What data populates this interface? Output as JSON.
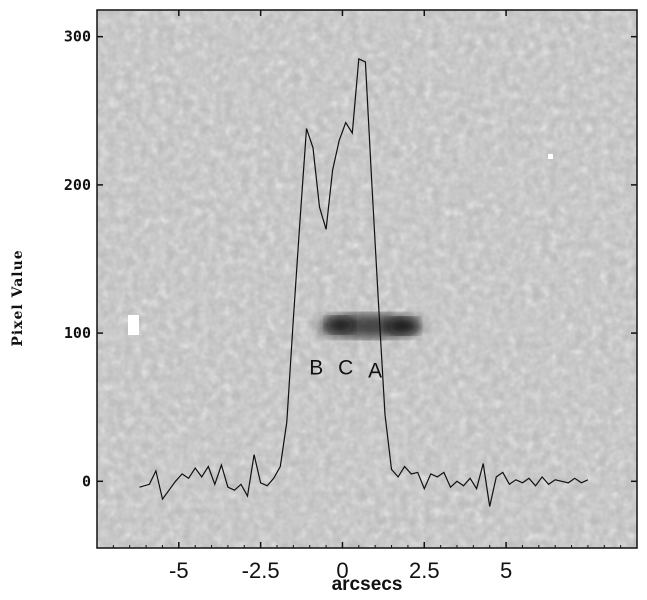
{
  "chart_data": {
    "type": "line",
    "xlabel": "arcsecs",
    "ylabel": "Pixel Value",
    "xlim": [
      -7.5,
      9.0
    ],
    "ylim": [
      -45,
      318
    ],
    "x_ticks": [
      -5,
      -2.5,
      0,
      2.5,
      5
    ],
    "x_tick_labels": [
      "-5",
      "-2.5",
      "0",
      "2.5",
      "5"
    ],
    "y_ticks": [
      0,
      100,
      200,
      300
    ],
    "y_tick_labels": [
      "0",
      "100",
      "200",
      "300"
    ],
    "grid": false,
    "background": "grayscale noise image with dark source blob around y=100, x from -1.2 to 1.6",
    "annotations": [
      {
        "text": "B",
        "x": -0.8,
        "y": 72
      },
      {
        "text": "C",
        "x": 0.1,
        "y": 72
      },
      {
        "text": "A",
        "x": 1.0,
        "y": 70
      }
    ],
    "series": [
      {
        "x": [
          -6.2,
          -5.9,
          -5.7,
          -5.5,
          -5.3,
          -5.1,
          -4.9,
          -4.7,
          -4.5,
          -4.3,
          -4.1,
          -3.9,
          -3.7,
          -3.5,
          -3.3,
          -3.1,
          -2.9,
          -2.7,
          -2.5,
          -2.3,
          -2.1,
          -1.9,
          -1.7,
          -1.5,
          -1.3,
          -1.1,
          -0.9,
          -0.7,
          -0.5,
          -0.3,
          -0.1,
          0.1,
          0.3,
          0.5,
          0.7,
          0.9,
          1.1,
          1.3,
          1.5,
          1.7,
          1.9,
          2.1,
          2.3,
          2.5,
          2.7,
          2.9,
          3.1,
          3.3,
          3.5,
          3.7,
          3.9,
          4.1,
          4.3,
          4.5,
          4.7,
          4.9,
          5.1,
          5.3,
          5.5,
          5.7,
          5.9,
          6.1,
          6.3,
          6.5,
          6.7,
          6.9,
          7.1,
          7.3,
          7.5
        ],
        "y": [
          -4,
          -2,
          7,
          -12,
          -6,
          0,
          5,
          2,
          9,
          3,
          10,
          -2,
          11,
          -4,
          -6,
          -2,
          -10,
          18,
          -1,
          -3,
          2,
          10,
          40,
          110,
          175,
          238,
          225,
          185,
          170,
          210,
          230,
          242,
          235,
          285,
          283,
          200,
          120,
          45,
          8,
          3,
          10,
          5,
          6,
          -5,
          5,
          3,
          6,
          -4,
          0,
          -3,
          2,
          -5,
          12,
          -17,
          3,
          6,
          -2,
          1,
          -1,
          2,
          -3,
          3,
          -2,
          1,
          0,
          -1,
          2,
          -1,
          1
        ]
      }
    ]
  }
}
